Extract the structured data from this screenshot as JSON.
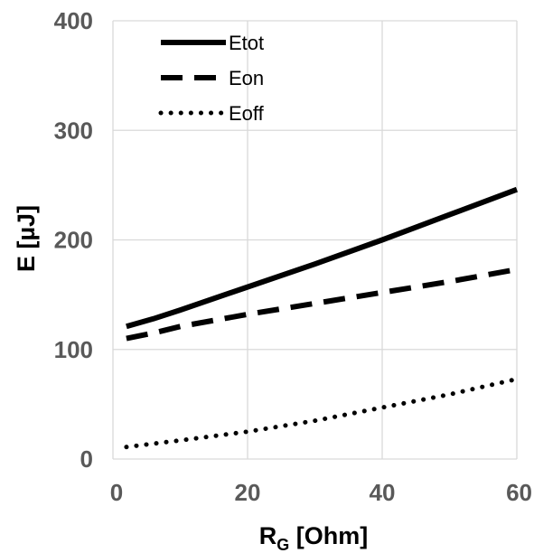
{
  "chart_data": {
    "type": "line",
    "xlabel": {
      "main": "R",
      "sub": "G",
      "unit": " [Ohm]"
    },
    "ylabel": "E  [µJ]",
    "xlim": [
      0,
      60
    ],
    "ylim": [
      0,
      400
    ],
    "xticks": [
      0,
      20,
      40,
      60
    ],
    "yticks": [
      0,
      100,
      200,
      300,
      400
    ],
    "grid": true,
    "legend_position": "top-left",
    "series": [
      {
        "name": "Etot",
        "style": "solid",
        "color": "#000000",
        "x": [
          2,
          6,
          10,
          20,
          30,
          40,
          50,
          60
        ],
        "y": [
          121,
          128,
          136,
          157,
          178,
          200,
          223,
          246
        ]
      },
      {
        "name": "Eon",
        "style": "dashed",
        "color": "#000000",
        "x": [
          2,
          6,
          10,
          20,
          30,
          40,
          50,
          60
        ],
        "y": [
          110,
          115,
          121,
          132,
          142,
          152,
          162,
          173
        ]
      },
      {
        "name": "Eoff",
        "style": "dotted",
        "color": "#000000",
        "x": [
          2,
          6,
          10,
          20,
          30,
          40,
          50,
          60
        ],
        "y": [
          11,
          14,
          17,
          25,
          35,
          47,
          59,
          73
        ]
      }
    ]
  }
}
